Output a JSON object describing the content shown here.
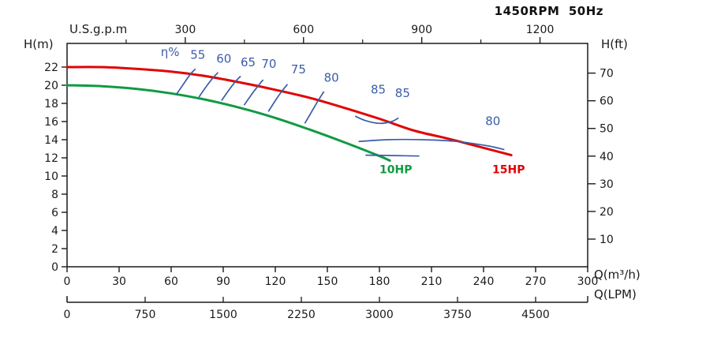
{
  "header": {
    "title": "1450RPM  50Hz"
  },
  "chart_data": {
    "type": "line",
    "title": "1450RPM 50Hz",
    "x_axis_main": {
      "label": "Q(m³/h)",
      "min": 0,
      "max": 300,
      "ticks": [
        0,
        30,
        60,
        90,
        120,
        150,
        180,
        210,
        240,
        270,
        300
      ]
    },
    "x_axis_top": {
      "label": "U.S.g.p.m",
      "ticks": [
        300,
        600,
        900,
        1200
      ],
      "minor_ticks": [
        150,
        450,
        750,
        1050
      ],
      "gpm_to_m3h": 0.2271
    },
    "x_axis_lpm": {
      "label": "Q(LPM)",
      "ticks": [
        0,
        750,
        1500,
        2250,
        3000,
        3750,
        4500
      ],
      "lpm_to_m3h": 0.06
    },
    "y_axis_left": {
      "label": "H(m)",
      "min": 0,
      "max": 22,
      "ticks": [
        0,
        2,
        4,
        6,
        8,
        10,
        12,
        14,
        16,
        18,
        20,
        22
      ]
    },
    "y_axis_right": {
      "label": "H(ft)",
      "ticks": [
        10,
        20,
        30,
        40,
        50,
        60,
        70
      ],
      "ft_to_m": 0.3048
    },
    "series": [
      {
        "name": "15HP",
        "color": "#e00505",
        "points": [
          [
            0,
            22
          ],
          [
            20,
            22
          ],
          [
            40,
            21.8
          ],
          [
            60,
            21.5
          ],
          [
            80,
            21.0
          ],
          [
            100,
            20.3
          ],
          [
            120,
            19.5
          ],
          [
            140,
            18.6
          ],
          [
            160,
            17.5
          ],
          [
            180,
            16.3
          ],
          [
            200,
            15.0
          ],
          [
            220,
            14.1
          ],
          [
            240,
            13.1
          ],
          [
            256,
            12.3
          ]
        ],
        "label_pos": [
          245,
          10.3
        ]
      },
      {
        "name": "10HP",
        "color": "#119a43",
        "points": [
          [
            0,
            20
          ],
          [
            20,
            19.9
          ],
          [
            40,
            19.6
          ],
          [
            60,
            19.1
          ],
          [
            80,
            18.4
          ],
          [
            100,
            17.5
          ],
          [
            120,
            16.4
          ],
          [
            140,
            15.1
          ],
          [
            160,
            13.7
          ],
          [
            180,
            12.2
          ],
          [
            186,
            11.7
          ]
        ],
        "label_pos": [
          180,
          10.3
        ]
      }
    ],
    "efficiency_lines": [
      {
        "value": "55",
        "points": [
          [
            63,
            19.0
          ],
          [
            67,
            20.1
          ],
          [
            71,
            21.2
          ],
          [
            74,
            21.8
          ]
        ]
      },
      {
        "value": "60",
        "points": [
          [
            76,
            18.7
          ],
          [
            80,
            19.8
          ],
          [
            84,
            20.8
          ],
          [
            87,
            21.4
          ]
        ]
      },
      {
        "value": "65",
        "points": [
          [
            89,
            18.3
          ],
          [
            93,
            19.4
          ],
          [
            97,
            20.4
          ],
          [
            100,
            21.0
          ]
        ]
      },
      {
        "value": "70",
        "points": [
          [
            102,
            17.8
          ],
          [
            106,
            18.9
          ],
          [
            110,
            19.9
          ],
          [
            113,
            20.6
          ]
        ]
      },
      {
        "value": "75",
        "points": [
          [
            116,
            17.1
          ],
          [
            120,
            18.3
          ],
          [
            124,
            19.4
          ],
          [
            127,
            20.1
          ]
        ]
      },
      {
        "value": "80",
        "points": [
          [
            137,
            15.8
          ],
          [
            141,
            17.1
          ],
          [
            145,
            18.4
          ],
          [
            148,
            19.3
          ]
        ]
      },
      {
        "value": "85",
        "points": [
          [
            166,
            16.6
          ],
          [
            172,
            16.1
          ],
          [
            180,
            15.8
          ],
          [
            187,
            16.0
          ],
          [
            191,
            16.4
          ]
        ]
      },
      {
        "value": "80",
        "points": [
          [
            168,
            13.8
          ],
          [
            185,
            14.0
          ],
          [
            205,
            14.0
          ],
          [
            225,
            13.8
          ],
          [
            243,
            13.3
          ],
          [
            252,
            12.9
          ]
        ]
      },
      {
        "value": "",
        "points": [
          [
            172,
            12.3
          ],
          [
            188,
            12.25
          ],
          [
            203,
            12.2
          ]
        ]
      }
    ],
    "efficiency_labels": [
      {
        "text": "η%",
        "pos": [
          54,
          23.2
        ]
      },
      {
        "text": "55",
        "pos": [
          71,
          22.9
        ]
      },
      {
        "text": "60",
        "pos": [
          86,
          22.5
        ]
      },
      {
        "text": "65",
        "pos": [
          100,
          22.1
        ]
      },
      {
        "text": "70",
        "pos": [
          112,
          21.9
        ]
      },
      {
        "text": "75",
        "pos": [
          129,
          21.3
        ]
      },
      {
        "text": "80",
        "pos": [
          148,
          20.4
        ]
      },
      {
        "text": "85",
        "pos": [
          175,
          19.1
        ]
      },
      {
        "text": "85",
        "pos": [
          189,
          18.7
        ]
      },
      {
        "text": "80",
        "pos": [
          241,
          15.6
        ]
      }
    ],
    "colors": {
      "axis": "#1a1a1a",
      "efficiency": "#3a5cab",
      "curve_15hp": "#e00505",
      "curve_10hp": "#119a43"
    }
  }
}
